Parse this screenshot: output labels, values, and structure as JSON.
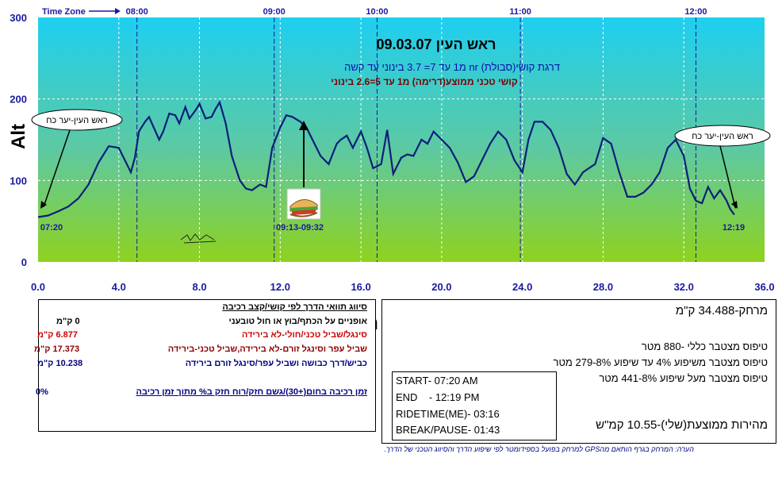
{
  "chart_data": {
    "type": "line",
    "title": "ראש העין 09.03.07",
    "subtitle_1": "דרגת קושי(סבולת) nr  מ1 עד 7= 3.7 בינוני עד קשה",
    "subtitle_2": "קושי טכני ממוצע(דרימה) מ1 עד 5=2.6 בינוני",
    "xlabel": "Km",
    "ylabel": "Alt",
    "xlim": [
      0,
      36
    ],
    "ylim": [
      0,
      300
    ],
    "x_ticks": [
      "0.0",
      "4.0",
      "8.0",
      "12.0",
      "16.0",
      "20.0",
      "24.0",
      "28.0",
      "32.0",
      "36.0"
    ],
    "y_ticks": [
      "0",
      "100",
      "200",
      "300"
    ],
    "time_zone_label": "Time Zone",
    "time_ticks": [
      {
        "label": "08:00",
        "km": 4.9
      },
      {
        "label": "09:00",
        "km": 11.7
      },
      {
        "label": "10:00",
        "km": 16.8
      },
      {
        "label": "11:00",
        "km": 23.9
      },
      {
        "label": "12:00",
        "km": 32.6
      }
    ],
    "annotations": [
      {
        "text": "ראש העין-יער כח",
        "km": 0.2,
        "alt": 62
      },
      {
        "text": "ראש העין-יער כח",
        "km": 34.4,
        "alt": 60
      },
      {
        "text": "07:20",
        "km": 0.0
      },
      {
        "text": "09:13-09:32",
        "km": 13.1
      },
      {
        "text": "12:19",
        "km": 34.5
      }
    ],
    "series": [
      {
        "x": [
          0,
          0.5,
          1,
          1.5,
          2,
          2.5,
          3,
          3.5,
          4,
          4.3,
          4.6,
          4.8,
          5,
          5.3,
          5.5,
          6,
          6.2,
          6.5,
          6.8,
          7,
          7.3,
          7.5,
          7.8,
          8,
          8.3,
          8.6,
          8.8,
          9,
          9.3,
          9.6,
          10,
          10.3,
          10.6,
          11,
          11.3,
          11.6,
          12,
          12.3,
          12.6,
          13,
          13.3,
          13.6,
          14,
          14.4,
          14.8,
          15,
          15.3,
          15.6,
          16,
          16.3,
          16.6,
          17,
          17.3,
          17.6,
          18,
          18.3,
          18.6,
          19,
          19.3,
          19.6,
          20,
          20.4,
          20.8,
          21.2,
          21.6,
          22,
          22.4,
          22.8,
          23.2,
          23.6,
          24,
          24.3,
          24.6,
          25,
          25.4,
          25.8,
          26.2,
          26.6,
          27,
          27.3,
          27.6,
          28,
          28.4,
          28.8,
          29.2,
          29.6,
          30,
          30.4,
          30.8,
          31.2,
          31.6,
          32,
          32.3,
          32.6,
          32.9,
          33.2,
          33.5,
          33.8,
          34.1,
          34.3,
          34.5
        ],
        "y": [
          55,
          57,
          62,
          68,
          78,
          95,
          122,
          142,
          140,
          125,
          110,
          128,
          160,
          172,
          178,
          150,
          160,
          182,
          180,
          170,
          190,
          176,
          186,
          194,
          176,
          178,
          188,
          196,
          170,
          130,
          100,
          90,
          88,
          95,
          92,
          140,
          165,
          180,
          178,
          172,
          165,
          150,
          130,
          120,
          145,
          150,
          155,
          140,
          160,
          140,
          115,
          120,
          162,
          108,
          128,
          132,
          130,
          150,
          145,
          160,
          150,
          140,
          122,
          98,
          105,
          125,
          145,
          160,
          150,
          125,
          110,
          150,
          172,
          172,
          162,
          140,
          108,
          95,
          110,
          115,
          120,
          152,
          145,
          110,
          80,
          80,
          85,
          95,
          110,
          140,
          150,
          130,
          90,
          75,
          72,
          92,
          78,
          88,
          76,
          65,
          58
        ]
      }
    ]
  },
  "legend_box": {
    "header": "סיווג תוואי הדרך לפי קושי/קצב רכיבה",
    "rows": [
      {
        "value": "0 ק\"מ",
        "text": "אופניים על הכתף/בוץ או חול טובעני",
        "color": "#000000"
      },
      {
        "value": "6.877 ק\"מ",
        "text": "סינגל/שביל טכני/חולי-לא בירידה",
        "color": "#cc0000"
      },
      {
        "value": "17.373 ק\"מ",
        "text": "שביל עפר וסינגל זורם-לא בירידה,שביל טכני-בירידה",
        "color": "#8b0000"
      },
      {
        "value": "10.238 ק\"מ",
        "text": "כביש/דרך כבושה ושביל עפר/סינגל זורם בירידה",
        "color": "#000080"
      }
    ],
    "footer_value": "0%",
    "footer_text": "זמן רכיבה בחום(+30)/גשם חזק/רוח חזק ב% מתוך זמן רכיבה"
  },
  "stats_box": {
    "distance": "מרחק-34.488 ק\"מ",
    "climb_total": "טיפוס מצטבר כללי  -880 מטר",
    "climb_4_8": "טיפוס מצטבר משיפוע 4% עד שיפוע 8%-279 מטר",
    "climb_over_8": "טיפוס מצטבר מעל שיפוע 8%-441 מטר",
    "avg_speed": "מהירות ממוצעת(שלי)-10.55 קמ\"ש",
    "start": "START- 07:20 AM",
    "end": "END    - 12:19 PM",
    "ridetime": "RIDETIME(ME)- 03:16",
    "break": "BREAK/PAUSE- 01:43"
  },
  "footnote": "הערה: המרחק בגרף הותאם מהGPS למרחק בפועל בספידומטר לפי שיפוע הדרך והסיווג הטכני של הדרך.",
  "colors": {
    "sky_top": "#1ecff0",
    "grass_bottom": "#8fd21e",
    "line": "#0b1f7a",
    "time_lines": "#1a1aa0"
  }
}
